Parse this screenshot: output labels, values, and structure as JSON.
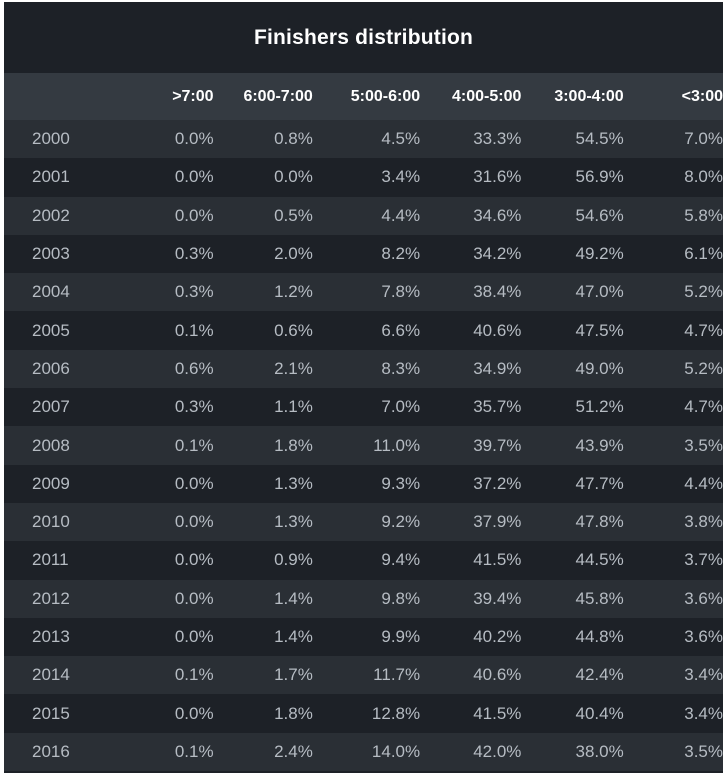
{
  "chart_data": {
    "type": "table",
    "title": "Finishers distribution",
    "columns": [
      "",
      ">7:00",
      "6:00-7:00",
      "5:00-6:00",
      "4:00-5:00",
      "3:00-4:00",
      "<3:00"
    ],
    "rows": [
      [
        "2000",
        "0.0%",
        "0.8%",
        "4.5%",
        "33.3%",
        "54.5%",
        "7.0%"
      ],
      [
        "2001",
        "0.0%",
        "0.0%",
        "3.4%",
        "31.6%",
        "56.9%",
        "8.0%"
      ],
      [
        "2002",
        "0.0%",
        "0.5%",
        "4.4%",
        "34.6%",
        "54.6%",
        "5.8%"
      ],
      [
        "2003",
        "0.3%",
        "2.0%",
        "8.2%",
        "34.2%",
        "49.2%",
        "6.1%"
      ],
      [
        "2004",
        "0.3%",
        "1.2%",
        "7.8%",
        "38.4%",
        "47.0%",
        "5.2%"
      ],
      [
        "2005",
        "0.1%",
        "0.6%",
        "6.6%",
        "40.6%",
        "47.5%",
        "4.7%"
      ],
      [
        "2006",
        "0.6%",
        "2.1%",
        "8.3%",
        "34.9%",
        "49.0%",
        "5.2%"
      ],
      [
        "2007",
        "0.3%",
        "1.1%",
        "7.0%",
        "35.7%",
        "51.2%",
        "4.7%"
      ],
      [
        "2008",
        "0.1%",
        "1.8%",
        "11.0%",
        "39.7%",
        "43.9%",
        "3.5%"
      ],
      [
        "2009",
        "0.0%",
        "1.3%",
        "9.3%",
        "37.2%",
        "47.7%",
        "4.4%"
      ],
      [
        "2010",
        "0.0%",
        "1.3%",
        "9.2%",
        "37.9%",
        "47.8%",
        "3.8%"
      ],
      [
        "2011",
        "0.0%",
        "0.9%",
        "9.4%",
        "41.5%",
        "44.5%",
        "3.7%"
      ],
      [
        "2012",
        "0.0%",
        "1.4%",
        "9.8%",
        "39.4%",
        "45.8%",
        "3.6%"
      ],
      [
        "2013",
        "0.0%",
        "1.4%",
        "9.9%",
        "40.2%",
        "44.8%",
        "3.6%"
      ],
      [
        "2014",
        "0.1%",
        "1.7%",
        "11.7%",
        "40.6%",
        "42.4%",
        "3.4%"
      ],
      [
        "2015",
        "0.0%",
        "1.8%",
        "12.8%",
        "41.5%",
        "40.4%",
        "3.4%"
      ],
      [
        "2016",
        "0.1%",
        "2.4%",
        "14.0%",
        "42.0%",
        "38.0%",
        "3.5%"
      ]
    ]
  },
  "colors": {
    "background": "#1d2127",
    "header_background": "#343a41",
    "row_alt_background": "#2a2f35",
    "header_text": "#ffffff",
    "cell_text": "#b6bcc3"
  }
}
